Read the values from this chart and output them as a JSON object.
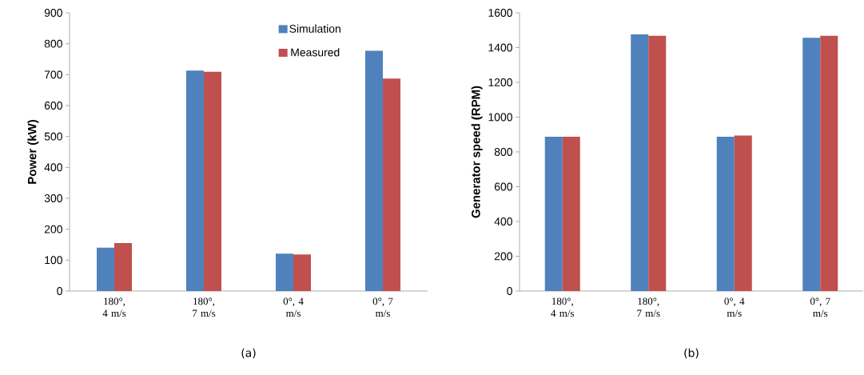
{
  "chart_data": [
    {
      "type": "bar",
      "ylabel": "Power (kW)",
      "categories": [
        "180°, 4 m/s",
        "180°, 7 m/s",
        "0°, 4 m/s",
        "0°, 7 m/s"
      ],
      "series": [
        {
          "name": "Simulation",
          "color": "#4f81bd",
          "values": [
            140,
            713,
            121,
            777
          ]
        },
        {
          "name": "Measured",
          "color": "#c0504d",
          "values": [
            155,
            709,
            118,
            687
          ]
        }
      ],
      "ylim": [
        0,
        900
      ],
      "yticks": [
        0,
        100,
        200,
        300,
        400,
        500,
        600,
        700,
        800,
        900
      ],
      "grid": false,
      "legend": "top right",
      "annotations": [
        "(a)"
      ]
    },
    {
      "type": "bar",
      "ylabel": "Generator speed (RPM)",
      "categories": [
        "180°, 4 m/s",
        "180°, 7 m/s",
        "0°, 4 m/s",
        "0°, 7 m/s"
      ],
      "series": [
        {
          "color": "#4f81bd",
          "values": [
            887,
            1476,
            887,
            1456
          ]
        },
        {
          "color": "#c0504d",
          "values": [
            887,
            1468,
            894,
            1468
          ]
        }
      ],
      "ylim": [
        0,
        1600
      ],
      "yticks": [
        0,
        200,
        400,
        600,
        800,
        1000,
        1200,
        1400,
        1600
      ],
      "grid": false,
      "legend": false,
      "annotations": [
        "(b)"
      ]
    }
  ]
}
